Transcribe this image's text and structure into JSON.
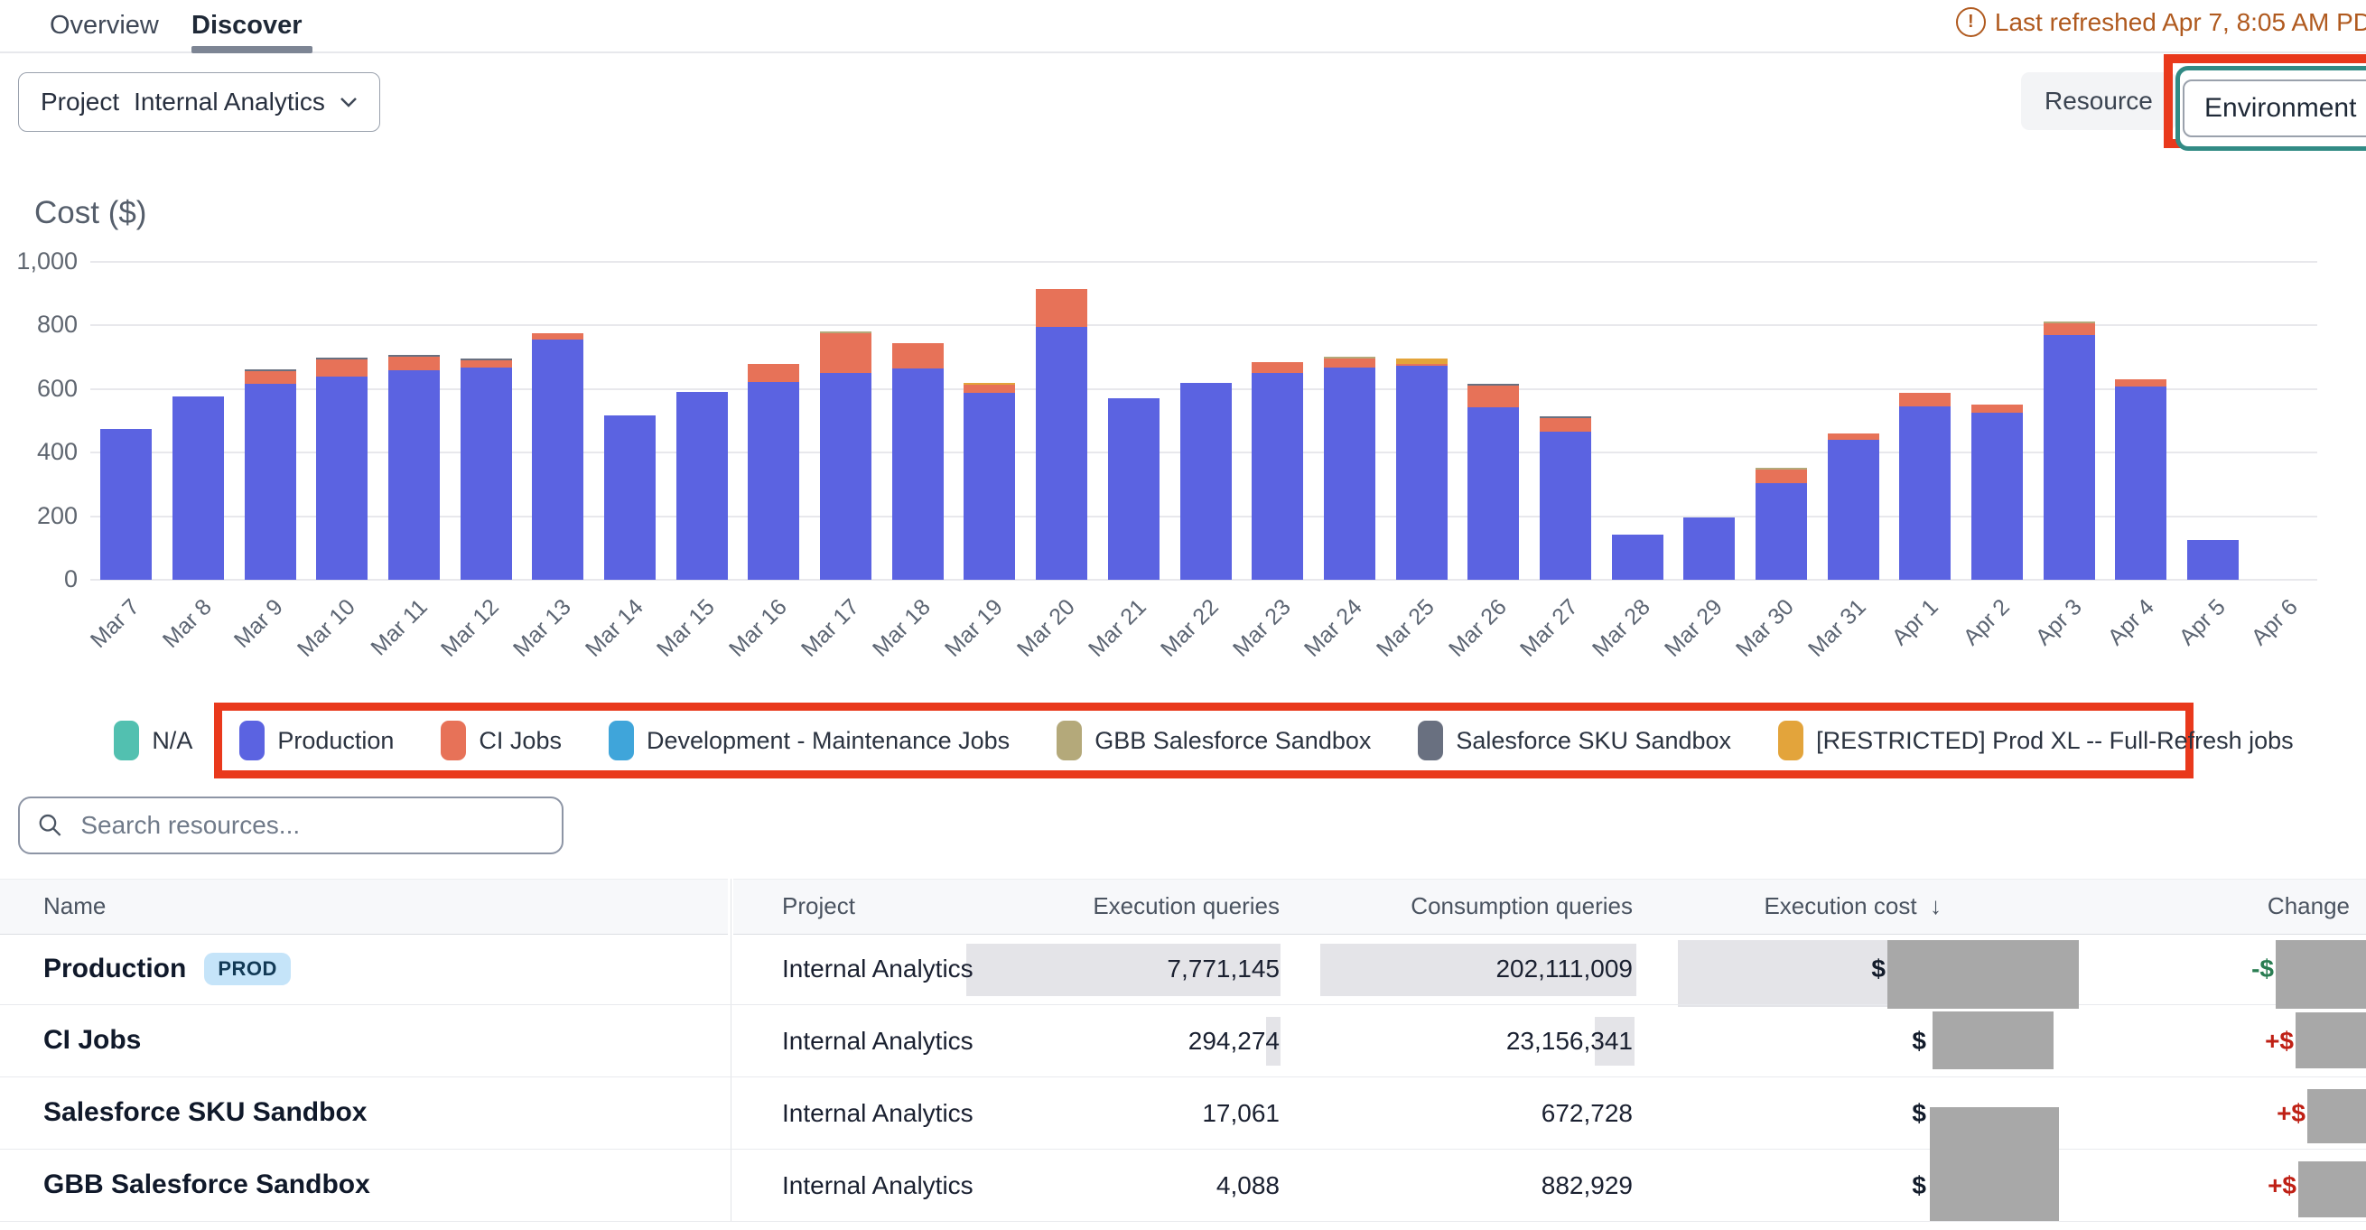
{
  "header": {
    "tabs": [
      {
        "label": "Overview",
        "active": false
      },
      {
        "label": "Discover",
        "active": true
      }
    ],
    "last_refreshed": "Last refreshed Apr 7, 8:05 AM PD",
    "warning_icon": "circle-exclamation-icon",
    "refreshed_color": "#b05a1f"
  },
  "toolbar": {
    "project_filter_label": "Project",
    "project_filter_value": "Internal Analytics",
    "resource_button": "Resource",
    "environment_button": "Environment",
    "annotation_color": "#e9391c"
  },
  "chart_data": {
    "type": "bar",
    "stacked": true,
    "title": "Cost ($)",
    "ylim": [
      0,
      1000
    ],
    "yticks": [
      0,
      200,
      400,
      600,
      800,
      1000
    ],
    "ytick_labels": [
      "0",
      "200",
      "400",
      "600",
      "800",
      "1,000"
    ],
    "grid": true,
    "legend_position": "bottom",
    "categories": [
      "Mar 7",
      "Mar 8",
      "Mar 9",
      "Mar 10",
      "Mar 11",
      "Mar 12",
      "Mar 13",
      "Mar 14",
      "Mar 15",
      "Mar 16",
      "Mar 17",
      "Mar 18",
      "Mar 19",
      "Mar 20",
      "Mar 21",
      "Mar 22",
      "Mar 23",
      "Mar 24",
      "Mar 25",
      "Mar 26",
      "Mar 27",
      "Mar 28",
      "Mar 29",
      "Mar 30",
      "Mar 31",
      "Apr 1",
      "Apr 2",
      "Apr 3",
      "Apr 4",
      "Apr 5",
      "Apr 6"
    ],
    "series": [
      {
        "name": "N/A",
        "color": "#52c0b0",
        "values": [
          0,
          0,
          0,
          0,
          0,
          0,
          0,
          0,
          0,
          0,
          0,
          0,
          0,
          0,
          0,
          0,
          0,
          0,
          0,
          0,
          0,
          0,
          0,
          0,
          0,
          0,
          0,
          0,
          0,
          0,
          0
        ]
      },
      {
        "name": "Production",
        "color": "#5b63e1",
        "values": [
          475,
          578,
          617,
          638,
          660,
          667,
          755,
          516,
          590,
          622,
          652,
          665,
          588,
          795,
          570,
          618,
          650,
          668,
          674,
          542,
          465,
          143,
          195,
          305,
          440,
          545,
          525,
          770,
          607,
          125,
          0
        ]
      },
      {
        "name": "CI Jobs",
        "color": "#e77258",
        "values": [
          0,
          0,
          38,
          55,
          42,
          22,
          22,
          0,
          0,
          58,
          125,
          78,
          25,
          120,
          0,
          0,
          34,
          28,
          5,
          70,
          44,
          0,
          0,
          43,
          21,
          43,
          27,
          38,
          24,
          0,
          0
        ]
      },
      {
        "name": "Development - Maintenance Jobs",
        "color": "#3fa5da",
        "values": [
          0,
          0,
          0,
          0,
          0,
          0,
          0,
          0,
          0,
          0,
          0,
          0,
          0,
          0,
          0,
          0,
          0,
          0,
          0,
          0,
          0,
          0,
          0,
          0,
          0,
          0,
          0,
          0,
          0,
          0,
          0
        ]
      },
      {
        "name": "GBB Salesforce Sandbox",
        "color": "#b4a97a",
        "values": [
          0,
          0,
          0,
          0,
          0,
          0,
          0,
          0,
          0,
          0,
          4,
          0,
          0,
          0,
          0,
          0,
          0,
          3,
          0,
          0,
          0,
          0,
          0,
          4,
          0,
          0,
          0,
          4,
          0,
          0,
          0
        ]
      },
      {
        "name": "Salesforce SKU Sandbox",
        "color": "#697080",
        "values": [
          0,
          0,
          8,
          5,
          3,
          3,
          0,
          0,
          0,
          0,
          0,
          0,
          0,
          0,
          0,
          0,
          0,
          0,
          0,
          3,
          3,
          0,
          0,
          0,
          0,
          0,
          0,
          0,
          0,
          0,
          0
        ]
      },
      {
        "name": "[RESTRICTED] Prod XL -- Full-Refresh jobs",
        "color": "#e3a43b",
        "values": [
          0,
          0,
          0,
          0,
          0,
          0,
          0,
          0,
          0,
          0,
          0,
          0,
          4,
          0,
          0,
          0,
          0,
          0,
          16,
          0,
          0,
          0,
          0,
          0,
          0,
          0,
          0,
          0,
          0,
          0,
          0
        ]
      }
    ]
  },
  "search": {
    "placeholder": "Search resources...",
    "icon": "magnifier-icon"
  },
  "table": {
    "columns": {
      "name": "Name",
      "project": "Project",
      "execution_queries": "Execution queries",
      "consumption_queries": "Consumption queries",
      "execution_cost": "Execution cost",
      "change": "Change"
    },
    "sort_icon": "↓",
    "sorted_by": "Execution cost",
    "rows": [
      {
        "name": "Production",
        "badge": "PROD",
        "project": "Internal Analytics",
        "execution_queries": "7,771,145",
        "consumption_queries": "202,111,009",
        "execution_cost": "$",
        "change": "-$",
        "change_dir": "down"
      },
      {
        "name": "CI Jobs",
        "badge": "",
        "project": "Internal Analytics",
        "execution_queries": "294,274",
        "consumption_queries": "23,156,341",
        "execution_cost": "$",
        "change": "+$",
        "change_dir": "up"
      },
      {
        "name": "Salesforce SKU Sandbox",
        "badge": "",
        "project": "Internal Analytics",
        "execution_queries": "17,061",
        "consumption_queries": "672,728",
        "execution_cost": "$",
        "change": "+$",
        "change_dir": "up"
      },
      {
        "name": "GBB Salesforce Sandbox",
        "badge": "",
        "project": "Internal Analytics",
        "execution_queries": "4,088",
        "consumption_queries": "882,929",
        "execution_cost": "$",
        "change": "+$",
        "change_dir": "up"
      }
    ]
  }
}
